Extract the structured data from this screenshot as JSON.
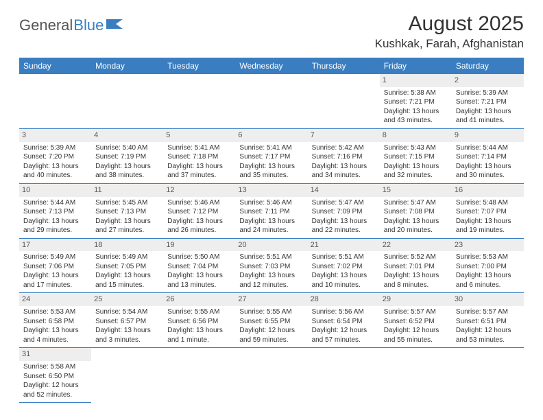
{
  "logo": {
    "part1": "General",
    "part2": "Blue"
  },
  "title": "August 2025",
  "location": "Kushkak, Farah, Afghanistan",
  "colors": {
    "header_bg": "#3a7ec1",
    "header_text": "#ffffff",
    "daynum_bg": "#eeeeee",
    "text": "#333333",
    "border": "#3a7ec1"
  },
  "weekdays": [
    "Sunday",
    "Monday",
    "Tuesday",
    "Wednesday",
    "Thursday",
    "Friday",
    "Saturday"
  ],
  "weeks": [
    [
      {
        "day": "",
        "lines": [
          "",
          "",
          "",
          ""
        ]
      },
      {
        "day": "",
        "lines": [
          "",
          "",
          "",
          ""
        ]
      },
      {
        "day": "",
        "lines": [
          "",
          "",
          "",
          ""
        ]
      },
      {
        "day": "",
        "lines": [
          "",
          "",
          "",
          ""
        ]
      },
      {
        "day": "",
        "lines": [
          "",
          "",
          "",
          ""
        ]
      },
      {
        "day": "1",
        "lines": [
          "Sunrise: 5:38 AM",
          "Sunset: 7:21 PM",
          "Daylight: 13 hours",
          "and 43 minutes."
        ]
      },
      {
        "day": "2",
        "lines": [
          "Sunrise: 5:39 AM",
          "Sunset: 7:21 PM",
          "Daylight: 13 hours",
          "and 41 minutes."
        ]
      }
    ],
    [
      {
        "day": "3",
        "lines": [
          "Sunrise: 5:39 AM",
          "Sunset: 7:20 PM",
          "Daylight: 13 hours",
          "and 40 minutes."
        ]
      },
      {
        "day": "4",
        "lines": [
          "Sunrise: 5:40 AM",
          "Sunset: 7:19 PM",
          "Daylight: 13 hours",
          "and 38 minutes."
        ]
      },
      {
        "day": "5",
        "lines": [
          "Sunrise: 5:41 AM",
          "Sunset: 7:18 PM",
          "Daylight: 13 hours",
          "and 37 minutes."
        ]
      },
      {
        "day": "6",
        "lines": [
          "Sunrise: 5:41 AM",
          "Sunset: 7:17 PM",
          "Daylight: 13 hours",
          "and 35 minutes."
        ]
      },
      {
        "day": "7",
        "lines": [
          "Sunrise: 5:42 AM",
          "Sunset: 7:16 PM",
          "Daylight: 13 hours",
          "and 34 minutes."
        ]
      },
      {
        "day": "8",
        "lines": [
          "Sunrise: 5:43 AM",
          "Sunset: 7:15 PM",
          "Daylight: 13 hours",
          "and 32 minutes."
        ]
      },
      {
        "day": "9",
        "lines": [
          "Sunrise: 5:44 AM",
          "Sunset: 7:14 PM",
          "Daylight: 13 hours",
          "and 30 minutes."
        ]
      }
    ],
    [
      {
        "day": "10",
        "lines": [
          "Sunrise: 5:44 AM",
          "Sunset: 7:13 PM",
          "Daylight: 13 hours",
          "and 29 minutes."
        ]
      },
      {
        "day": "11",
        "lines": [
          "Sunrise: 5:45 AM",
          "Sunset: 7:13 PM",
          "Daylight: 13 hours",
          "and 27 minutes."
        ]
      },
      {
        "day": "12",
        "lines": [
          "Sunrise: 5:46 AM",
          "Sunset: 7:12 PM",
          "Daylight: 13 hours",
          "and 26 minutes."
        ]
      },
      {
        "day": "13",
        "lines": [
          "Sunrise: 5:46 AM",
          "Sunset: 7:11 PM",
          "Daylight: 13 hours",
          "and 24 minutes."
        ]
      },
      {
        "day": "14",
        "lines": [
          "Sunrise: 5:47 AM",
          "Sunset: 7:09 PM",
          "Daylight: 13 hours",
          "and 22 minutes."
        ]
      },
      {
        "day": "15",
        "lines": [
          "Sunrise: 5:47 AM",
          "Sunset: 7:08 PM",
          "Daylight: 13 hours",
          "and 20 minutes."
        ]
      },
      {
        "day": "16",
        "lines": [
          "Sunrise: 5:48 AM",
          "Sunset: 7:07 PM",
          "Daylight: 13 hours",
          "and 19 minutes."
        ]
      }
    ],
    [
      {
        "day": "17",
        "lines": [
          "Sunrise: 5:49 AM",
          "Sunset: 7:06 PM",
          "Daylight: 13 hours",
          "and 17 minutes."
        ]
      },
      {
        "day": "18",
        "lines": [
          "Sunrise: 5:49 AM",
          "Sunset: 7:05 PM",
          "Daylight: 13 hours",
          "and 15 minutes."
        ]
      },
      {
        "day": "19",
        "lines": [
          "Sunrise: 5:50 AM",
          "Sunset: 7:04 PM",
          "Daylight: 13 hours",
          "and 13 minutes."
        ]
      },
      {
        "day": "20",
        "lines": [
          "Sunrise: 5:51 AM",
          "Sunset: 7:03 PM",
          "Daylight: 13 hours",
          "and 12 minutes."
        ]
      },
      {
        "day": "21",
        "lines": [
          "Sunrise: 5:51 AM",
          "Sunset: 7:02 PM",
          "Daylight: 13 hours",
          "and 10 minutes."
        ]
      },
      {
        "day": "22",
        "lines": [
          "Sunrise: 5:52 AM",
          "Sunset: 7:01 PM",
          "Daylight: 13 hours",
          "and 8 minutes."
        ]
      },
      {
        "day": "23",
        "lines": [
          "Sunrise: 5:53 AM",
          "Sunset: 7:00 PM",
          "Daylight: 13 hours",
          "and 6 minutes."
        ]
      }
    ],
    [
      {
        "day": "24",
        "lines": [
          "Sunrise: 5:53 AM",
          "Sunset: 6:58 PM",
          "Daylight: 13 hours",
          "and 4 minutes."
        ]
      },
      {
        "day": "25",
        "lines": [
          "Sunrise: 5:54 AM",
          "Sunset: 6:57 PM",
          "Daylight: 13 hours",
          "and 3 minutes."
        ]
      },
      {
        "day": "26",
        "lines": [
          "Sunrise: 5:55 AM",
          "Sunset: 6:56 PM",
          "Daylight: 13 hours",
          "and 1 minute."
        ]
      },
      {
        "day": "27",
        "lines": [
          "Sunrise: 5:55 AM",
          "Sunset: 6:55 PM",
          "Daylight: 12 hours",
          "and 59 minutes."
        ]
      },
      {
        "day": "28",
        "lines": [
          "Sunrise: 5:56 AM",
          "Sunset: 6:54 PM",
          "Daylight: 12 hours",
          "and 57 minutes."
        ]
      },
      {
        "day": "29",
        "lines": [
          "Sunrise: 5:57 AM",
          "Sunset: 6:52 PM",
          "Daylight: 12 hours",
          "and 55 minutes."
        ]
      },
      {
        "day": "30",
        "lines": [
          "Sunrise: 5:57 AM",
          "Sunset: 6:51 PM",
          "Daylight: 12 hours",
          "and 53 minutes."
        ]
      }
    ],
    [
      {
        "day": "31",
        "lines": [
          "Sunrise: 5:58 AM",
          "Sunset: 6:50 PM",
          "Daylight: 12 hours",
          "and 52 minutes."
        ]
      },
      {
        "day": "",
        "lines": [
          "",
          "",
          "",
          ""
        ]
      },
      {
        "day": "",
        "lines": [
          "",
          "",
          "",
          ""
        ]
      },
      {
        "day": "",
        "lines": [
          "",
          "",
          "",
          ""
        ]
      },
      {
        "day": "",
        "lines": [
          "",
          "",
          "",
          ""
        ]
      },
      {
        "day": "",
        "lines": [
          "",
          "",
          "",
          ""
        ]
      },
      {
        "day": "",
        "lines": [
          "",
          "",
          "",
          ""
        ]
      }
    ]
  ]
}
